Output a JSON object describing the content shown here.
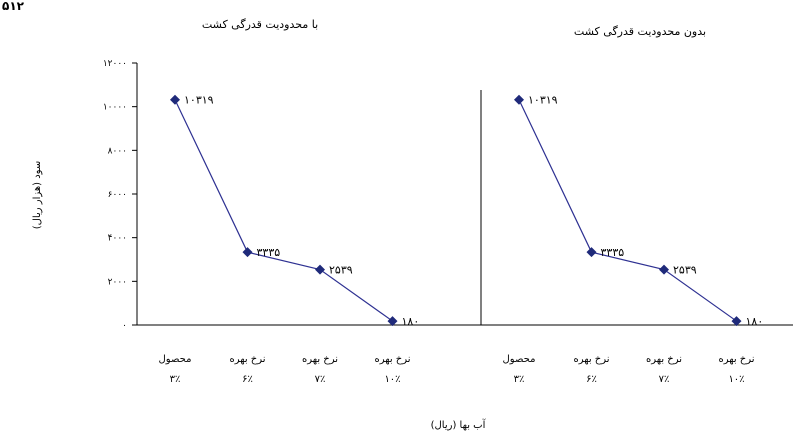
{
  "corner_text": "۵۱۲",
  "chart_data": {
    "type": "line",
    "ylabel": "سود (هزار ریال)",
    "xlabel": "آب بها (ریال)",
    "ylim": [
      0,
      12000
    ],
    "y_ticks": [
      0,
      2000,
      4000,
      6000,
      8000,
      10000,
      12000
    ],
    "y_tick_labels": [
      "۰",
      "۲۰۰۰",
      "۴۰۰۰",
      "۶۰۰۰",
      "۸۰۰۰",
      "۱۰۰۰۰",
      "۱۲۰۰۰"
    ],
    "categories": [
      {
        "line1": "محصول",
        "line2": "۳٪"
      },
      {
        "line1": "نرخ بهره",
        "line2": "۶٪"
      },
      {
        "line1": "نرخ بهره",
        "line2": "۷٪"
      },
      {
        "line1": "نرخ بهره",
        "line2": "۱۰٪"
      }
    ],
    "line_color": "#2e3192",
    "marker_color": "#1f2a7a",
    "grid": false,
    "panels": [
      {
        "title": "با محدودیت قدرگی کشت",
        "values": [
          10319,
          3335,
          2539,
          180
        ],
        "value_labels": [
          "۱۰۳۱۹",
          "۳۳۳۵",
          "۲۵۳۹",
          "۱۸۰"
        ]
      },
      {
        "title": "بدون محدودیت قدرگی کشت",
        "values": [
          10319,
          3335,
          2539,
          180
        ],
        "value_labels": [
          "۱۰۳۱۹",
          "۳۳۳۵",
          "۲۵۳۹",
          "۱۸۰"
        ]
      }
    ]
  }
}
